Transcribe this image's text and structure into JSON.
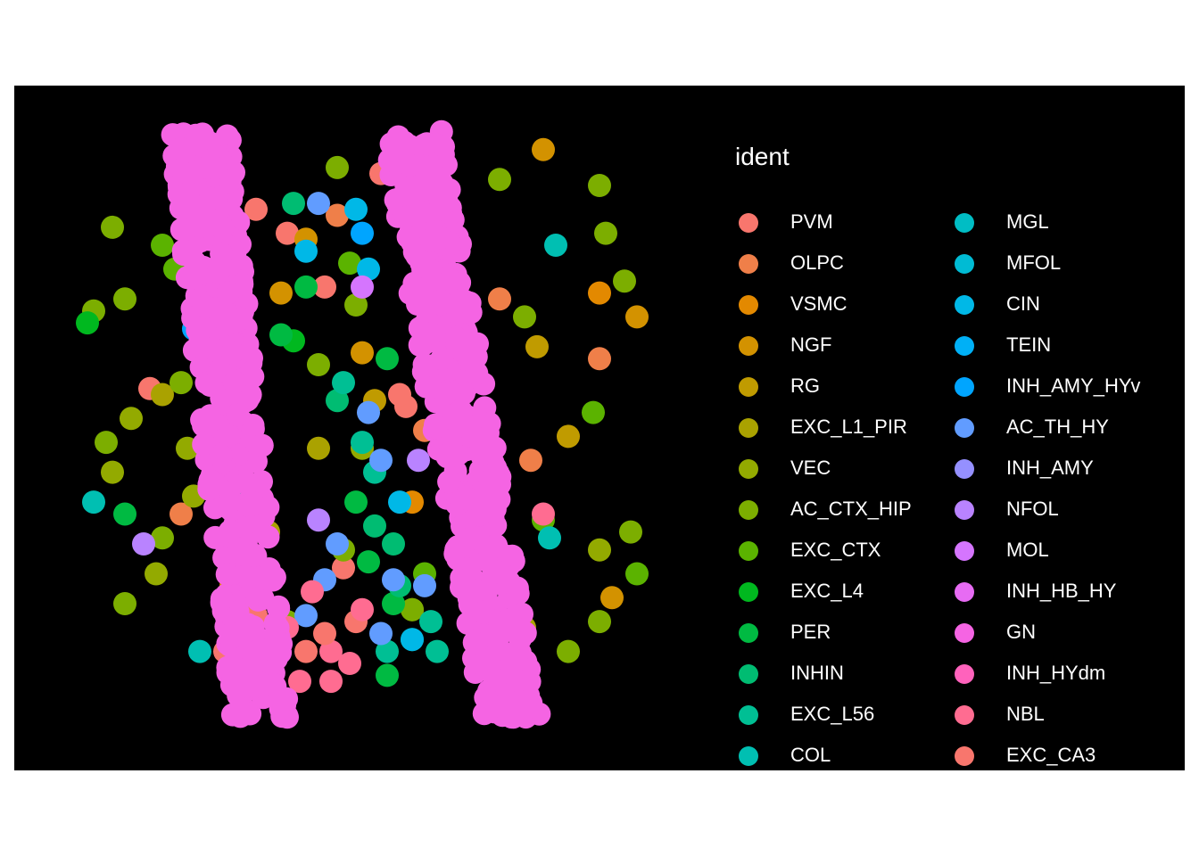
{
  "chart_data": {
    "type": "scatter",
    "title": "",
    "xlabel": "",
    "ylabel": "",
    "xlim": [
      0,
      1
    ],
    "ylim": [
      0,
      1
    ],
    "grid": false,
    "background": "#000000",
    "legend": {
      "title": "ident",
      "placement": "right",
      "columns": 2,
      "entries": [
        {
          "name": "PVM",
          "color": "#F8766D"
        },
        {
          "name": "OLPC",
          "color": "#EF7F49"
        },
        {
          "name": "VSMC",
          "color": "#E38900"
        },
        {
          "name": "NGF",
          "color": "#D39200"
        },
        {
          "name": "RG",
          "color": "#C09B00"
        },
        {
          "name": "EXC_L1_PIR",
          "color": "#AAA200"
        },
        {
          "name": "VEC",
          "color": "#93AA00"
        },
        {
          "name": "AC_CTX_HIP",
          "color": "#7CAE00"
        },
        {
          "name": "EXC_CTX",
          "color": "#5BB300"
        },
        {
          "name": "EXC_L4",
          "color": "#00B81F"
        },
        {
          "name": "PER",
          "color": "#00BA42"
        },
        {
          "name": "INHIN",
          "color": "#00BC72"
        },
        {
          "name": "EXC_L56",
          "color": "#00BF94"
        },
        {
          "name": "COL",
          "color": "#00BFB2"
        },
        {
          "name": "MGL",
          "color": "#00BDC4"
        },
        {
          "name": "MFOL",
          "color": "#00BBD4"
        },
        {
          "name": "CIN",
          "color": "#00B8E7"
        },
        {
          "name": "TEIN",
          "color": "#00B0F6"
        },
        {
          "name": "INH_AMY_HYv",
          "color": "#00A5FF"
        },
        {
          "name": "AC_TH_HY",
          "color": "#619CFF"
        },
        {
          "name": "INH_AMY",
          "color": "#9590FF"
        },
        {
          "name": "NFOL",
          "color": "#B983FF"
        },
        {
          "name": "MOL",
          "color": "#D575FE"
        },
        {
          "name": "INH_HB_HY",
          "color": "#E76BF3"
        },
        {
          "name": "GN",
          "color": "#F564E3"
        },
        {
          "name": "INH_HYdm",
          "color": "#FF62BC"
        },
        {
          "name": "NBL",
          "color": "#FF6C91"
        },
        {
          "name": "EXC_CA3",
          "color": "#F8766D"
        }
      ]
    },
    "series": [
      {
        "name": "GN",
        "note_bands": true,
        "bands": [
          {
            "x_top": 0.24,
            "x_bottom": 0.34,
            "points": 420
          },
          {
            "x_top": 0.58,
            "x_bottom": 0.74,
            "points": 420
          }
        ]
      },
      {
        "name": "PVM",
        "points": [
          [
            0.53,
            0.92
          ],
          [
            0.33,
            0.86
          ],
          [
            0.38,
            0.82
          ],
          [
            0.44,
            0.73
          ],
          [
            0.16,
            0.56
          ],
          [
            0.27,
            0.42
          ],
          [
            0.47,
            0.26
          ],
          [
            0.49,
            0.17
          ],
          [
            0.41,
            0.12
          ]
        ]
      },
      {
        "name": "OLPC",
        "points": [
          [
            0.46,
            0.85
          ],
          [
            0.72,
            0.71
          ],
          [
            0.6,
            0.49
          ],
          [
            0.88,
            0.61
          ],
          [
            0.77,
            0.44
          ],
          [
            0.21,
            0.35
          ]
        ]
      },
      {
        "name": "VSMC",
        "points": [
          [
            0.88,
            0.72
          ],
          [
            0.22,
            0.78
          ],
          [
            0.58,
            0.37
          ],
          [
            0.29,
            0.23
          ]
        ]
      },
      {
        "name": "NGF",
        "points": [
          [
            0.79,
            0.96
          ],
          [
            0.41,
            0.81
          ],
          [
            0.37,
            0.72
          ],
          [
            0.94,
            0.68
          ],
          [
            0.5,
            0.62
          ],
          [
            0.9,
            0.21
          ]
        ]
      },
      {
        "name": "RG",
        "points": [
          [
            0.52,
            0.54
          ],
          [
            0.78,
            0.63
          ],
          [
            0.83,
            0.48
          ],
          [
            0.58,
            0.19
          ]
        ]
      },
      {
        "name": "EXC_L1_PIR",
        "points": [
          [
            0.18,
            0.55
          ],
          [
            0.43,
            0.46
          ],
          [
            0.76,
            0.16
          ],
          [
            0.35,
            0.32
          ]
        ]
      },
      {
        "name": "VEC",
        "points": [
          [
            0.13,
            0.51
          ],
          [
            0.22,
            0.46
          ],
          [
            0.1,
            0.42
          ],
          [
            0.23,
            0.38
          ],
          [
            0.17,
            0.25
          ],
          [
            0.88,
            0.29
          ],
          [
            0.3,
            0.68
          ],
          [
            0.5,
            0.46
          ]
        ]
      },
      {
        "name": "AC_CTX_HIP",
        "points": [
          [
            0.1,
            0.83
          ],
          [
            0.12,
            0.71
          ],
          [
            0.07,
            0.69
          ],
          [
            0.21,
            0.57
          ],
          [
            0.09,
            0.47
          ],
          [
            0.18,
            0.31
          ],
          [
            0.12,
            0.2
          ],
          [
            0.72,
            0.91
          ],
          [
            0.88,
            0.9
          ],
          [
            0.89,
            0.82
          ],
          [
            0.92,
            0.74
          ],
          [
            0.76,
            0.68
          ],
          [
            0.43,
            0.6
          ],
          [
            0.49,
            0.7
          ],
          [
            0.88,
            0.17
          ],
          [
            0.83,
            0.12
          ],
          [
            0.93,
            0.32
          ],
          [
            0.47,
            0.29
          ],
          [
            0.58,
            0.19
          ],
          [
            0.38,
            0.17
          ],
          [
            0.46,
            0.93
          ]
        ]
      },
      {
        "name": "EXC_CTX",
        "points": [
          [
            0.18,
            0.8
          ],
          [
            0.2,
            0.76
          ],
          [
            0.48,
            0.77
          ],
          [
            0.63,
            0.68
          ],
          [
            0.7,
            0.48
          ],
          [
            0.87,
            0.52
          ],
          [
            0.6,
            0.25
          ],
          [
            0.79,
            0.34
          ],
          [
            0.94,
            0.25
          ]
        ]
      },
      {
        "name": "EXC_L4",
        "points": [
          [
            0.06,
            0.67
          ],
          [
            0.31,
            0.18
          ],
          [
            0.39,
            0.64
          ]
        ]
      },
      {
        "name": "PER",
        "points": [
          [
            0.12,
            0.35
          ],
          [
            0.41,
            0.73
          ],
          [
            0.37,
            0.65
          ],
          [
            0.54,
            0.61
          ],
          [
            0.49,
            0.37
          ],
          [
            0.51,
            0.27
          ],
          [
            0.55,
            0.2
          ],
          [
            0.54,
            0.08
          ]
        ]
      },
      {
        "name": "INHIN",
        "points": [
          [
            0.39,
            0.87
          ],
          [
            0.46,
            0.54
          ],
          [
            0.52,
            0.33
          ],
          [
            0.55,
            0.3
          ],
          [
            0.56,
            0.23
          ],
          [
            0.58,
            0.14
          ]
        ]
      },
      {
        "name": "EXC_L56",
        "points": [
          [
            0.47,
            0.57
          ],
          [
            0.5,
            0.47
          ],
          [
            0.52,
            0.42
          ],
          [
            0.61,
            0.17
          ],
          [
            0.62,
            0.12
          ],
          [
            0.54,
            0.12
          ],
          [
            0.29,
            0.38
          ]
        ]
      },
      {
        "name": "COL",
        "points": [
          [
            0.07,
            0.37
          ],
          [
            0.28,
            0.39
          ],
          [
            0.24,
            0.12
          ],
          [
            0.81,
            0.8
          ],
          [
            0.8,
            0.31
          ]
        ]
      },
      {
        "name": "CIN",
        "points": [
          [
            0.41,
            0.79
          ],
          [
            0.49,
            0.86
          ],
          [
            0.51,
            0.76
          ],
          [
            0.56,
            0.37
          ],
          [
            0.58,
            0.14
          ],
          [
            0.73,
            0.08
          ]
        ]
      },
      {
        "name": "INH_AMY_HYv",
        "points": [
          [
            0.23,
            0.66
          ],
          [
            0.5,
            0.82
          ]
        ]
      },
      {
        "name": "AC_TH_HY",
        "points": [
          [
            0.43,
            0.87
          ],
          [
            0.51,
            0.52
          ],
          [
            0.53,
            0.44
          ],
          [
            0.46,
            0.3
          ],
          [
            0.44,
            0.24
          ],
          [
            0.41,
            0.18
          ],
          [
            0.55,
            0.24
          ],
          [
            0.6,
            0.23
          ],
          [
            0.53,
            0.15
          ]
        ]
      },
      {
        "name": "NFOL",
        "points": [
          [
            0.15,
            0.3
          ],
          [
            0.43,
            0.34
          ],
          [
            0.59,
            0.44
          ]
        ]
      },
      {
        "name": "MOL",
        "points": [
          [
            0.5,
            0.73
          ],
          [
            0.26,
            0.39
          ]
        ]
      },
      {
        "name": "NBL",
        "points": [
          [
            0.38,
            0.16
          ],
          [
            0.45,
            0.07
          ],
          [
            0.48,
            0.1
          ],
          [
            0.4,
            0.07
          ],
          [
            0.42,
            0.22
          ],
          [
            0.5,
            0.19
          ],
          [
            0.45,
            0.12
          ],
          [
            0.79,
            0.35
          ]
        ]
      },
      {
        "name": "EXC_CA3",
        "points": [
          [
            0.28,
            0.12
          ],
          [
            0.33,
            0.18
          ],
          [
            0.36,
            0.14
          ],
          [
            0.44,
            0.15
          ],
          [
            0.57,
            0.53
          ],
          [
            0.56,
            0.55
          ]
        ]
      }
    ]
  }
}
